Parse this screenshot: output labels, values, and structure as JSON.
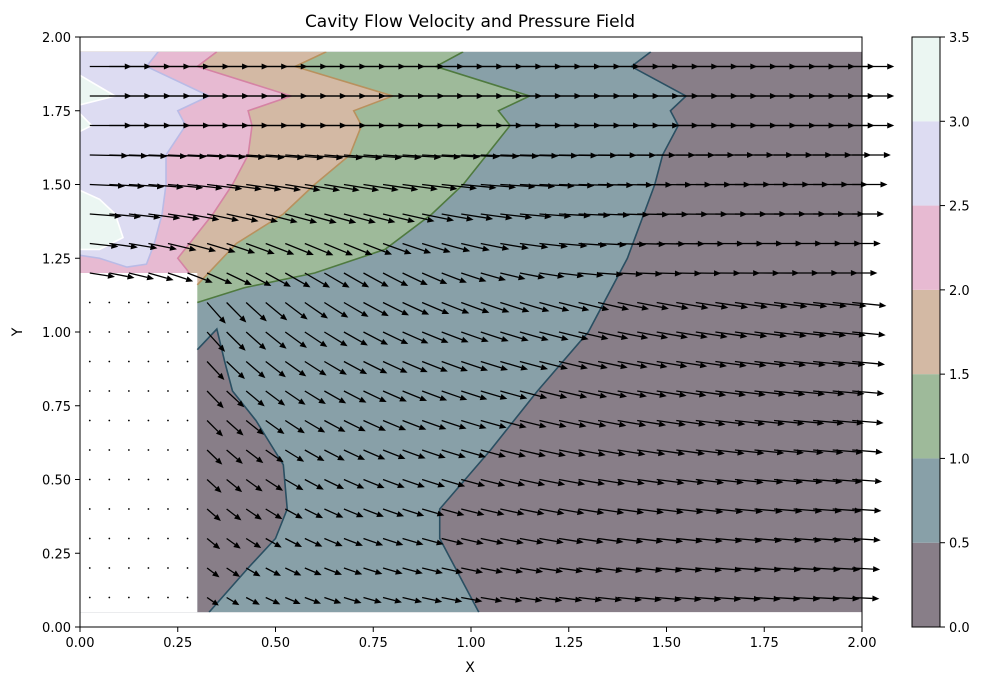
{
  "chart_data": {
    "type": "contour",
    "title": "Cavity Flow Velocity and Pressure Field",
    "xlabel": "X",
    "ylabel": "Y",
    "xlim": [
      0.0,
      2.0
    ],
    "ylim": [
      0.0,
      2.0
    ],
    "x_ticks": [
      "0.00",
      "0.25",
      "0.50",
      "0.75",
      "1.00",
      "1.25",
      "1.50",
      "1.75",
      "2.00"
    ],
    "y_ticks": [
      "0.00",
      "0.25",
      "0.50",
      "0.75",
      "1.00",
      "1.25",
      "1.50",
      "1.75",
      "2.00"
    ],
    "grid": false,
    "domain": {
      "x_range": [
        0.0,
        2.0
      ],
      "y_range": [
        0.05,
        1.95
      ]
    },
    "cavity_obstacle": {
      "x_range": [
        0.0,
        0.3
      ],
      "y_range": [
        0.05,
        1.2
      ]
    },
    "colorbar": {
      "levels": [
        0.0,
        0.5,
        1.0,
        1.5,
        2.0,
        2.5,
        3.0,
        3.5
      ],
      "tick_labels": [
        "0.0",
        "0.5",
        "1.0",
        "1.5",
        "2.0",
        "2.5",
        "3.0",
        "3.5"
      ],
      "colors": [
        "#887e88",
        "#88a0a8",
        "#9eba9a",
        "#d3b9a4",
        "#e7bad2",
        "#dddcf2",
        "#ebf6f2"
      ],
      "line_colors": [
        "#000000",
        "#2a4f62",
        "#4f7a3f",
        "#b9915e",
        "#d583a4",
        "#b9bbe6",
        "#ffffff"
      ]
    },
    "contour_lines": [
      {
        "level": 0.5,
        "points": [
          [
            1.46,
            1.95
          ],
          [
            1.41,
            1.9
          ],
          [
            1.55,
            1.8
          ],
          [
            1.51,
            1.75
          ],
          [
            1.53,
            1.7
          ],
          [
            1.49,
            1.6
          ],
          [
            1.47,
            1.5
          ],
          [
            1.4,
            1.25
          ],
          [
            1.3,
            1.0
          ],
          [
            1.17,
            0.8
          ],
          [
            1.05,
            0.6
          ],
          [
            0.92,
            0.4
          ],
          [
            0.92,
            0.3
          ],
          [
            0.96,
            0.2
          ],
          [
            1.02,
            0.05
          ]
        ]
      },
      {
        "level": 0.5,
        "points": [
          [
            0.3,
            0.94
          ],
          [
            0.35,
            1.01
          ],
          [
            0.37,
            0.9
          ],
          [
            0.39,
            0.8
          ],
          [
            0.45,
            0.7
          ],
          [
            0.52,
            0.55
          ],
          [
            0.53,
            0.4
          ],
          [
            0.5,
            0.3
          ],
          [
            0.43,
            0.2
          ],
          [
            0.33,
            0.05
          ]
        ]
      },
      {
        "level": 1.0,
        "points": [
          [
            0.98,
            1.95
          ],
          [
            0.91,
            1.9
          ],
          [
            1.15,
            1.8
          ],
          [
            1.07,
            1.75
          ],
          [
            1.1,
            1.7
          ],
          [
            1.04,
            1.6
          ],
          [
            0.98,
            1.5
          ],
          [
            0.9,
            1.4
          ],
          [
            0.78,
            1.28
          ],
          [
            0.6,
            1.2
          ],
          [
            0.42,
            1.15
          ],
          [
            0.3,
            1.1
          ]
        ]
      },
      {
        "level": 1.5,
        "points": [
          [
            0.63,
            1.95
          ],
          [
            0.55,
            1.9
          ],
          [
            0.8,
            1.8
          ],
          [
            0.7,
            1.75
          ],
          [
            0.72,
            1.7
          ],
          [
            0.69,
            1.6
          ],
          [
            0.6,
            1.5
          ],
          [
            0.52,
            1.4
          ],
          [
            0.4,
            1.3
          ],
          [
            0.3,
            1.16
          ]
        ]
      },
      {
        "level": 2.0,
        "points": [
          [
            0.35,
            1.95
          ],
          [
            0.3,
            1.9
          ],
          [
            0.54,
            1.8
          ],
          [
            0.43,
            1.75
          ],
          [
            0.44,
            1.7
          ],
          [
            0.43,
            1.6
          ],
          [
            0.39,
            1.5
          ],
          [
            0.34,
            1.4
          ],
          [
            0.25,
            1.25
          ],
          [
            0.28,
            1.2
          ]
        ]
      },
      {
        "level": 2.5,
        "points": [
          [
            0.2,
            1.95
          ],
          [
            0.17,
            1.9
          ],
          [
            0.33,
            1.8
          ],
          [
            0.25,
            1.75
          ],
          [
            0.27,
            1.7
          ],
          [
            0.22,
            1.6
          ],
          [
            0.22,
            1.5
          ],
          [
            0.21,
            1.4
          ],
          [
            0.19,
            1.3
          ],
          [
            0.17,
            1.23
          ],
          [
            0.12,
            1.22
          ],
          [
            0.05,
            1.25
          ],
          [
            0.0,
            1.26
          ]
        ]
      },
      {
        "level": 3.0,
        "points": [
          [
            0.0,
            1.87
          ],
          [
            0.09,
            1.8
          ],
          [
            0.0,
            1.77
          ]
        ]
      },
      {
        "level": 3.0,
        "points": [
          [
            0.0,
            1.74
          ],
          [
            0.03,
            1.7
          ],
          [
            0.0,
            1.68
          ]
        ]
      },
      {
        "level": 3.0,
        "points": [
          [
            0.0,
            1.48
          ],
          [
            0.05,
            1.45
          ],
          [
            0.09,
            1.4
          ],
          [
            0.11,
            1.32
          ],
          [
            0.05,
            1.28
          ],
          [
            0.0,
            1.28
          ]
        ]
      }
    ],
    "quiver": {
      "x_start": 0.025,
      "x_step": 0.05,
      "x_count": 40,
      "y_start": 0.1,
      "y_step": 0.1,
      "y_count": 19,
      "vector_field": "cavity flow: uniform x-directed flow above y≈1.2, recirculating downward flow past the step at x=0.3, near-zero velocity inside the cavity",
      "arrow_color": "#000000"
    }
  }
}
